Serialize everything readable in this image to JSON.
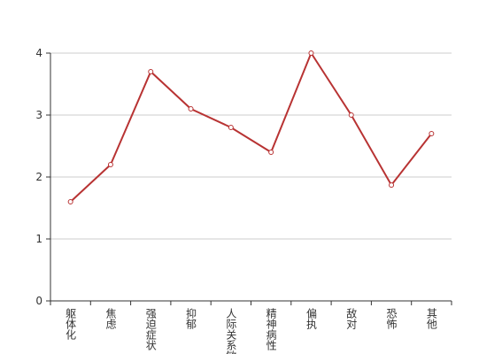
{
  "chart_data": {
    "type": "line",
    "categories": [
      "躯体化",
      "焦虑",
      "强迫症状",
      "抑郁",
      "人际关系敏感",
      "精神病性",
      "偏执",
      "敌对",
      "恐怖",
      "其他"
    ],
    "series": [
      {
        "color": "#b83333",
        "values": [
          1.6,
          2.2,
          3.7,
          3.1,
          2.8,
          2.4,
          4,
          3.0,
          1.87,
          2.7
        ]
      }
    ],
    "ylim": [
      0,
      4
    ],
    "yticks": [
      0,
      1,
      2,
      3,
      4
    ],
    "grid": true
  }
}
